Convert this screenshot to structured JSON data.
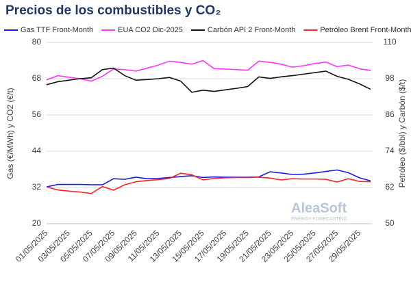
{
  "chart_data": {
    "type": "line",
    "title": "Precios de los combustibles y CO₂",
    "y_label": "Gas (€/MWh) y CO2 (€/t)",
    "y2_label": "Petróleo ($/bbl) y Carbón ($/t)",
    "watermark": "AleaSoft",
    "watermark_sub": "ENERGY FORECASTING",
    "categories": [
      "01/05/2025",
      null,
      "03/05/2025",
      null,
      "05/05/2025",
      null,
      "07/05/2025",
      null,
      "09/05/2025",
      null,
      "11/05/2025",
      null,
      "13/05/2025",
      null,
      "15/05/2025",
      null,
      "17/05/2025",
      null,
      "19/05/2025",
      null,
      "21/05/2025",
      null,
      "23/05/2025",
      null,
      "25/05/2025",
      null,
      "27/05/2025",
      null,
      "29/05/2025",
      null
    ],
    "ylim": [
      20,
      80
    ],
    "yticks": [
      20,
      32,
      44,
      56,
      68,
      80
    ],
    "y2lim": [
      50,
      110
    ],
    "y2ticks": [
      50,
      62,
      74,
      86,
      98,
      110
    ],
    "grid": true,
    "series": [
      {
        "name": "Gas TTF Front-Month",
        "color": "#1a1ae6",
        "values": [
          32.2,
          33.0,
          33.0,
          33.0,
          32.9,
          32.9,
          34.9,
          34.7,
          35.4,
          34.9,
          35.0,
          35.3,
          35.6,
          35.9,
          35.3,
          35.5,
          35.4,
          35.4,
          35.4,
          35.5,
          37.2,
          36.8,
          36.3,
          36.4,
          36.8,
          37.3,
          37.8,
          36.9,
          35.2,
          34.2
        ]
      },
      {
        "name": "EUA CO2 Dic-2025",
        "color": "#ff33ff",
        "values": [
          67.6,
          69.0,
          68.5,
          68.0,
          67.2,
          68.8,
          71.2,
          71.0,
          70.5,
          71.5,
          72.5,
          73.8,
          73.4,
          72.8,
          74.0,
          71.3,
          71.2,
          71.0,
          70.8,
          73.8,
          73.4,
          72.8,
          71.8,
          72.3,
          73.0,
          73.5,
          72.0,
          72.5,
          71.3,
          70.7
        ]
      },
      {
        "name": "Carbón API 2 Front-Month",
        "color": "#111111",
        "axis": "y2",
        "values": [
          96.0,
          97.0,
          97.5,
          98.0,
          98.3,
          101.0,
          101.5,
          99.0,
          97.5,
          97.7,
          98.0,
          98.4,
          97.2,
          93.5,
          94.2,
          93.8,
          94.3,
          94.8,
          95.4,
          98.6,
          98.1,
          98.6,
          99.0,
          99.5,
          100.0,
          100.5,
          98.8,
          97.8,
          96.3,
          94.5
        ]
      },
      {
        "name": "Petróleo Brent Front-Month",
        "color": "#ff2020",
        "axis": "y2",
        "values": [
          62.2,
          61.2,
          60.8,
          60.5,
          60.0,
          62.3,
          61.1,
          62.9,
          63.9,
          64.3,
          64.6,
          65.0,
          66.7,
          66.2,
          64.5,
          65.0,
          65.2,
          65.3,
          65.3,
          65.4,
          65.1,
          64.5,
          64.9,
          64.8,
          64.8,
          64.7,
          63.8,
          64.9,
          64.0,
          63.9
        ]
      }
    ]
  }
}
